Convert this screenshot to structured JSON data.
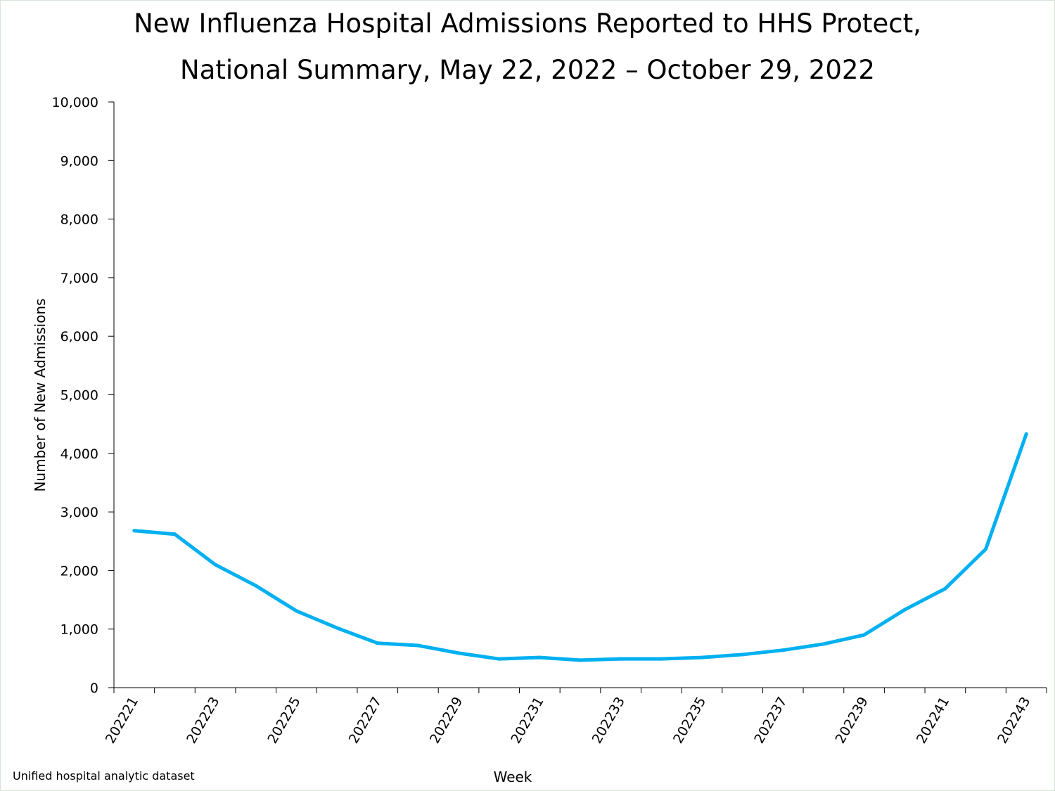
{
  "chart_data": {
    "type": "line",
    "title_line1": "New Influenza Hospital Admissions Reported to HHS Protect,",
    "title_line2": "National Summary, May 22, 2022 – October 29, 2022",
    "xlabel": "Week",
    "ylabel": "Number of New Admissions",
    "ylim": [
      0,
      10000
    ],
    "yticks": [
      "0",
      "1,000",
      "2,000",
      "3,000",
      "4,000",
      "5,000",
      "6,000",
      "7,000",
      "8,000",
      "9,000",
      "10,000"
    ],
    "x": [
      "202221",
      "202222",
      "202223",
      "202224",
      "202225",
      "202226",
      "202227",
      "202228",
      "202229",
      "202230",
      "202231",
      "202232",
      "202233",
      "202234",
      "202235",
      "202236",
      "202237",
      "202238",
      "202239",
      "202240",
      "202241",
      "202242",
      "202243"
    ],
    "xtick_labels": [
      "202221",
      "202223",
      "202225",
      "202227",
      "202229",
      "202231",
      "202233",
      "202235",
      "202237",
      "202239",
      "202241",
      "202243"
    ],
    "series": [
      {
        "name": "New Admissions",
        "color": "#00b0f0",
        "values": [
          2680,
          2620,
          2100,
          1740,
          1310,
          1020,
          760,
          720,
          590,
          490,
          515,
          470,
          490,
          490,
          515,
          565,
          640,
          745,
          900,
          1330,
          1690,
          2365,
          4330
        ]
      }
    ],
    "grid": false,
    "legend": "none"
  },
  "source_note": "Unified hospital analytic dataset"
}
